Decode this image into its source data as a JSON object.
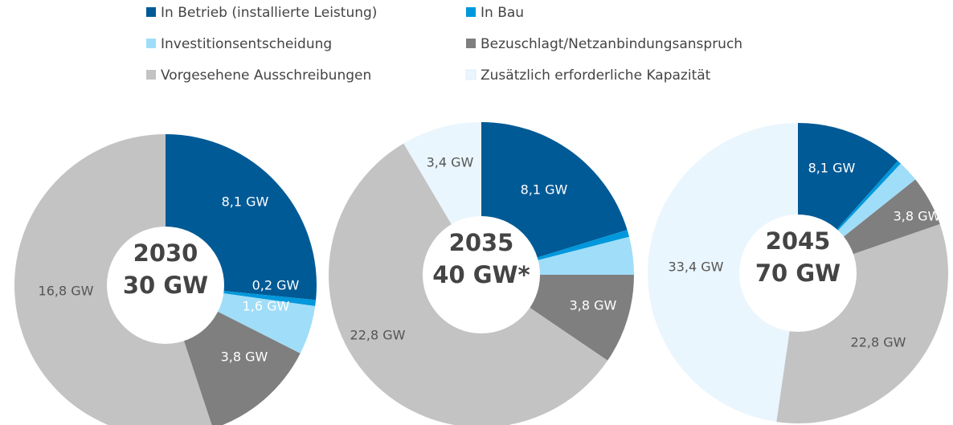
{
  "legend": {
    "series": [
      {
        "name": "In Betrieb (installierte Leistung)",
        "color": "#005a96"
      },
      {
        "name": "In Bau",
        "color": "#0098dc"
      },
      {
        "name": "Investitionsentscheidung",
        "color": "#a0ddf8"
      },
      {
        "name": "Bezuschlagt/Netzanbindungsanspruch",
        "color": "#7f7f7f"
      },
      {
        "name": "Vorgesehene Ausschreibungen",
        "color": "#c3c3c3"
      },
      {
        "name": "Zusätzlich erforderliche Kapazität",
        "color": "#eaf6fd"
      }
    ]
  },
  "chart_data": [
    {
      "type": "pie",
      "title": "2030",
      "subtitle": "30 GW",
      "values": [
        8.1,
        0.2,
        1.6,
        3.8,
        16.8,
        null
      ],
      "value_labels": [
        "8,1 GW",
        "0,2 GW",
        "1,6 GW",
        "3,8 GW",
        "16,8 GW",
        null
      ]
    },
    {
      "type": "pie",
      "title": "2035",
      "subtitle": "40 GW*",
      "values": [
        8.1,
        0.3,
        1.6,
        3.8,
        22.8,
        3.4
      ],
      "value_labels": [
        "8,1 GW",
        null,
        null,
        "3,8 GW",
        "22,8 GW",
        "3,4 GW"
      ]
    },
    {
      "type": "pie",
      "title": "2045",
      "subtitle": "70 GW",
      "values": [
        8.1,
        0.3,
        1.6,
        3.8,
        22.8,
        33.4
      ],
      "value_labels": [
        "8,1 GW",
        null,
        null,
        "3,8 GW",
        "22,8 GW",
        "33,4 GW"
      ]
    }
  ]
}
